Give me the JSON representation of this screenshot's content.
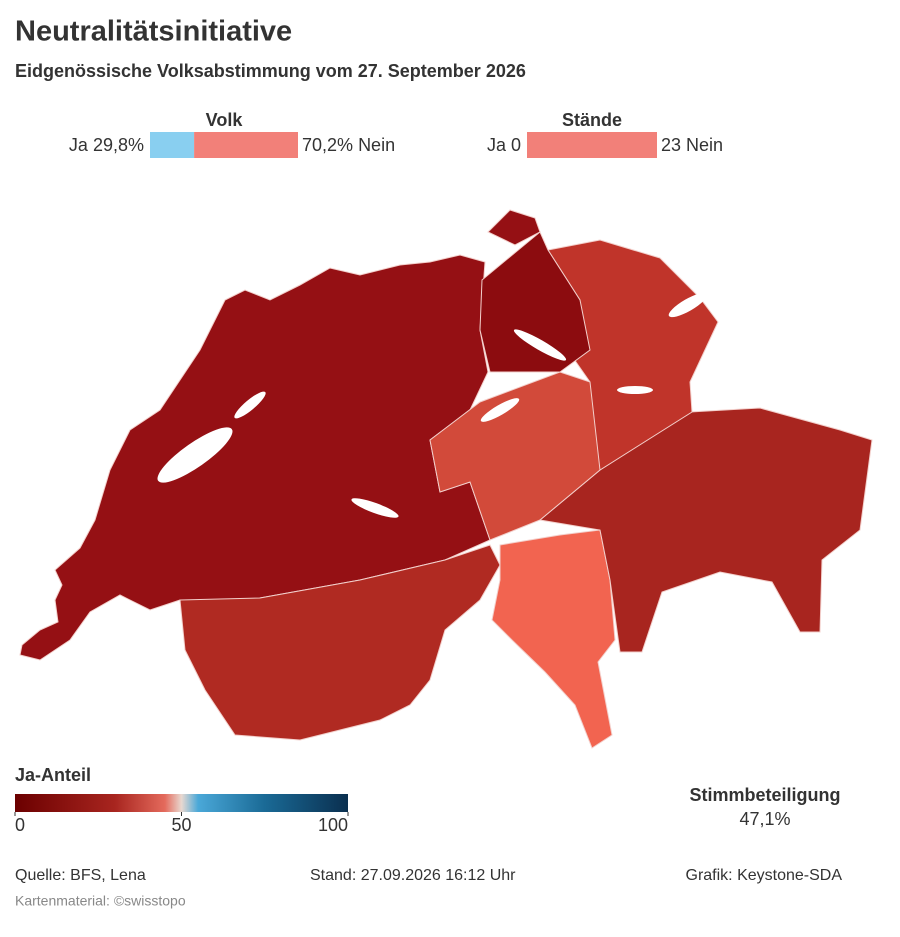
{
  "header": {
    "title": "Neutralitätsinitiative",
    "subtitle": "Eidgenössische Volksabstimmung vom 27. September 2026"
  },
  "summary": {
    "volk": {
      "title": "Volk",
      "ja": {
        "label": "Ja",
        "value": 29.8,
        "value_label": "29,8%",
        "color": "#89cff0"
      },
      "nein": {
        "value": 70.2,
        "value_label": "70,2%",
        "label": "Nein",
        "color": "#f28079"
      }
    },
    "staende": {
      "title": "Stände",
      "ja": {
        "label": "Ja",
        "value": 0,
        "color": "#89cff0"
      },
      "nein": {
        "value": 23,
        "label": "Nein",
        "color": "#f28079"
      }
    }
  },
  "legend": {
    "title": "Ja-Anteil",
    "lim": [
      0,
      100
    ],
    "ticks": [
      0,
      50,
      100
    ]
  },
  "turnout": {
    "label": "Stimmbeteiligung",
    "value": "47,1%"
  },
  "footer": {
    "source": "Quelle: BFS, Lena",
    "stand": "Stand: 27.09.2026 16:12 Uhr",
    "grafik": "Grafik: Keystone-SDA",
    "karten": "Kartenmaterial: ©swisstopo"
  }
}
